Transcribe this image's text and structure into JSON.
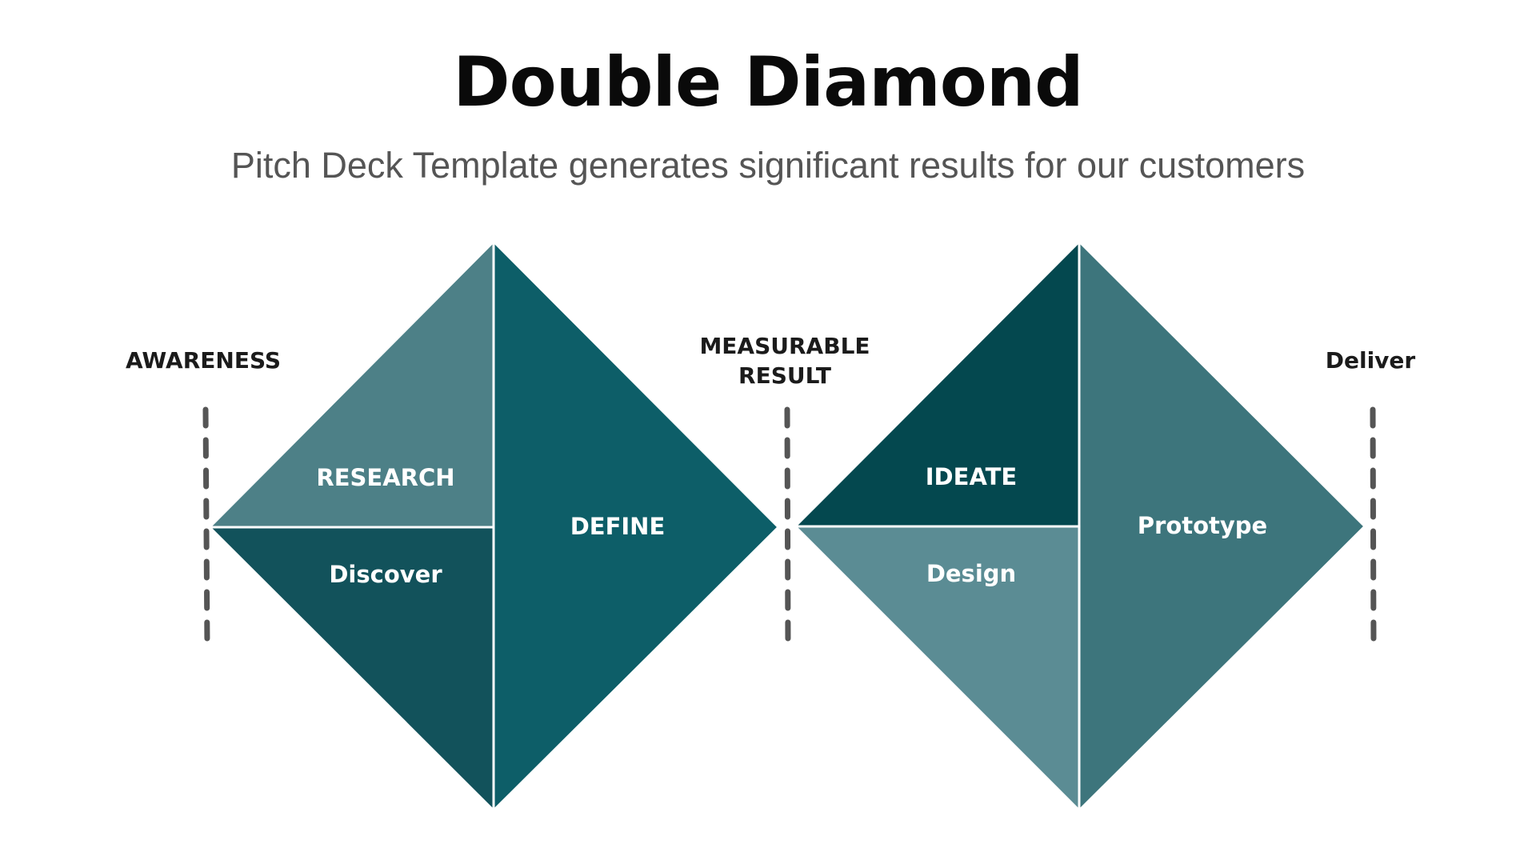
{
  "title": "Double Diamond",
  "subtitle": "Pitch Deck Template generates significant results for our customers",
  "markers": {
    "awareness": "AWARENESS",
    "measurable_line1": "MEASURABLE",
    "measurable_line2": "RESULT",
    "deliver": "Deliver"
  },
  "diamond1": {
    "research": "RESEARCH",
    "discover": "Discover",
    "define": "DEFINE"
  },
  "diamond2": {
    "ideate": "IDEATE",
    "design": "Design",
    "prototype": "Prototype"
  },
  "colors": {
    "research": "#4d8087",
    "discover": "#12525b",
    "define": "#0d5e68",
    "ideate": "#04484f",
    "design": "#5b8c94",
    "prototype": "#3d757c",
    "dash": "#555555"
  }
}
